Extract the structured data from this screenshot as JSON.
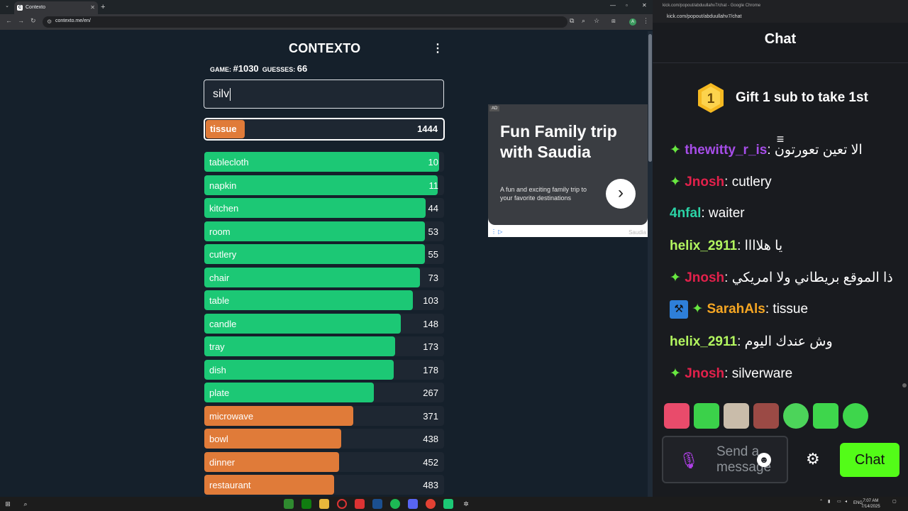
{
  "browser_left": {
    "tab_title": "Contexto",
    "url": "contexto.me/en/"
  },
  "contexto": {
    "title": "CONTEXTO",
    "game_label": "GAME:",
    "game_number": "#1030",
    "guesses_label": "GUESSES:",
    "guesses_count": "66",
    "input_value": "silv",
    "last_guess": {
      "word": "tissue",
      "rank": "1444",
      "color": "#e07b39"
    },
    "guesses": [
      {
        "word": "tablecloth",
        "rank": "10",
        "fill": 0.99,
        "color": "#1cc875"
      },
      {
        "word": "napkin",
        "rank": "11",
        "fill": 0.985,
        "color": "#1cc875"
      },
      {
        "word": "kitchen",
        "rank": "44",
        "fill": 0.935,
        "color": "#1cc875"
      },
      {
        "word": "room",
        "rank": "53",
        "fill": 0.93,
        "color": "#1cc875"
      },
      {
        "word": "cutlery",
        "rank": "55",
        "fill": 0.93,
        "color": "#1cc875"
      },
      {
        "word": "chair",
        "rank": "73",
        "fill": 0.91,
        "color": "#1cc875"
      },
      {
        "word": "table",
        "rank": "103",
        "fill": 0.88,
        "color": "#1cc875"
      },
      {
        "word": "candle",
        "rank": "148",
        "fill": 0.83,
        "color": "#1cc875"
      },
      {
        "word": "tray",
        "rank": "173",
        "fill": 0.805,
        "color": "#1cc875"
      },
      {
        "word": "dish",
        "rank": "178",
        "fill": 0.8,
        "color": "#1cc875"
      },
      {
        "word": "plate",
        "rank": "267",
        "fill": 0.715,
        "color": "#1cc875"
      },
      {
        "word": "microwave",
        "rank": "371",
        "fill": 0.63,
        "color": "#e07b39"
      },
      {
        "word": "bowl",
        "rank": "438",
        "fill": 0.577,
        "color": "#e07b39"
      },
      {
        "word": "dinner",
        "rank": "452",
        "fill": 0.568,
        "color": "#e07b39"
      },
      {
        "word": "restaurant",
        "rank": "483",
        "fill": 0.548,
        "color": "#e07b39"
      }
    ]
  },
  "ad": {
    "label": "AD",
    "title": "Fun Family trip with Saudia",
    "subtitle": "A fun and exciting family trip to your favorite destinations",
    "brand": "Saudia"
  },
  "browser_right": {
    "window_title": "kick.com/popout/abduullahv7/chat - Google Chrome",
    "url": "kick.com/popout/abduullahv7/chat"
  },
  "chat": {
    "heading": "Chat",
    "gift_rank": "1",
    "gift_text": "Gift 1 sub to take 1st",
    "partial_top": {
      "name": "thewitty_r_is",
      "text": "الا تعين تعورتون"
    },
    "messages": [
      {
        "name": "Jnosh",
        "text": "cutlery"
      },
      {
        "name": "4nfal",
        "text": "waiter"
      },
      {
        "name": "helix_2911",
        "text": "يا هلاااا"
      },
      {
        "name": "Jnosh",
        "text": "ذا الموقع بريطاني ولا امريكي"
      },
      {
        "name": "SarahAls",
        "text": "tissue"
      },
      {
        "name": "helix_2911",
        "text": "وش عندك اليوم"
      },
      {
        "name": "Jnosh",
        "text": "silverware"
      }
    ],
    "input_placeholder": "Send a message",
    "send_label": "Chat"
  },
  "taskbar": {
    "lang": "ENG",
    "time": "7:07 AM",
    "date": "7/14/2025"
  }
}
